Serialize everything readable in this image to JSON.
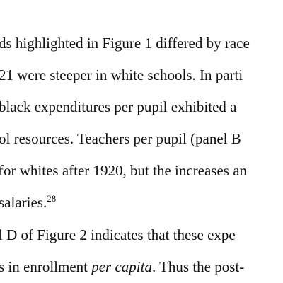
{
  "paragraphs": [
    {
      "lines": [
        {
          "text": "ds highlighted in Figure 1 differed by race"
        },
        {
          "text": "21 were steeper in white schools.  In parti"
        },
        {
          "text": "black expenditures per pupil exhibited a"
        },
        {
          "text": "ol resources.  Teachers per pupil (panel B"
        },
        {
          "text": "for whites after 1920, but the increases an"
        },
        {
          "text": "salaries.",
          "footnote": "28"
        }
      ]
    },
    {
      "lines": [
        {
          "text": "l D of Figure 2 indicates that these expe"
        },
        {
          "pre": "s in enrollment ",
          "italic": "per capita",
          "post": ".  Thus the post-"
        }
      ]
    }
  ]
}
